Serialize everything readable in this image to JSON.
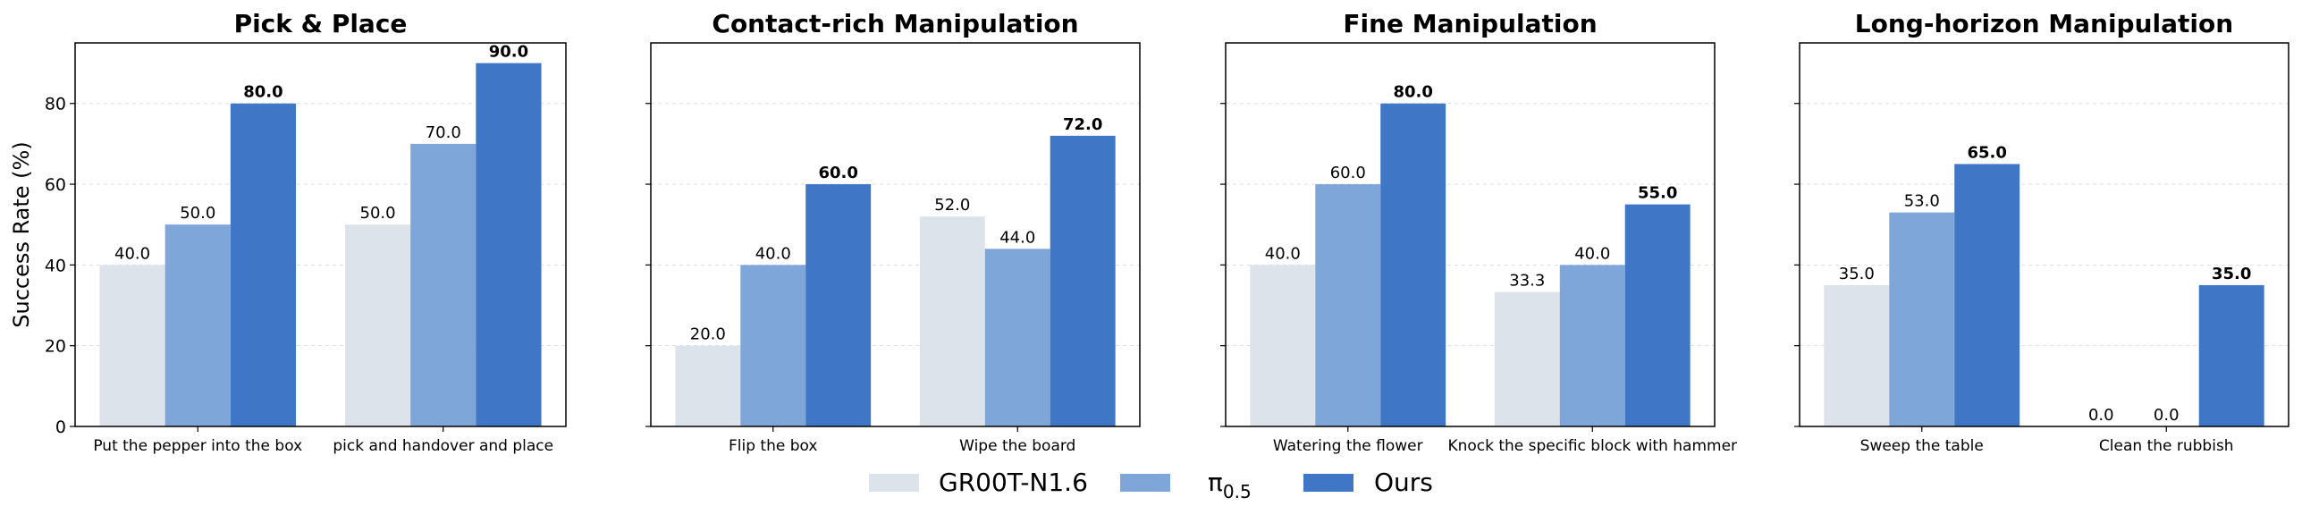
{
  "legend": {
    "entries": [
      {
        "label": "GR00T-N1.6",
        "color": "#dde3ea"
      },
      {
        "label": "π",
        "sub": "0.5",
        "color": "#7ea6d9"
      },
      {
        "label": "Ours",
        "color": "#3f76c5"
      }
    ]
  },
  "chart_data": [
    {
      "type": "bar",
      "title": "Pick & Place",
      "ylabel": "Success Rate (%)",
      "ylim": [
        0,
        95
      ],
      "yticks": [
        "0",
        "20",
        "40",
        "60",
        "80"
      ],
      "categories": [
        "Put the pepper into the box",
        "pick and handover and place"
      ],
      "series": [
        {
          "name": "GR00T-N1.6",
          "values": [
            40.0,
            50.0
          ],
          "labels": [
            "40.0",
            "50.0"
          ]
        },
        {
          "name": "π0.5",
          "values": [
            50.0,
            70.0
          ],
          "labels": [
            "50.0",
            "70.0"
          ]
        },
        {
          "name": "Ours",
          "values": [
            80.0,
            90.0
          ],
          "labels": [
            "80.0",
            "90.0"
          ]
        }
      ]
    },
    {
      "type": "bar",
      "title": "Contact-rich Manipulation",
      "ylabel": "",
      "ylim": [
        0,
        95
      ],
      "yticks": [],
      "categories": [
        "Flip the box",
        "Wipe the board"
      ],
      "series": [
        {
          "name": "GR00T-N1.6",
          "values": [
            20.0,
            52.0
          ],
          "labels": [
            "20.0",
            "52.0"
          ]
        },
        {
          "name": "π0.5",
          "values": [
            40.0,
            44.0
          ],
          "labels": [
            "40.0",
            "44.0"
          ]
        },
        {
          "name": "Ours",
          "values": [
            60.0,
            72.0
          ],
          "labels": [
            "60.0",
            "72.0"
          ]
        }
      ]
    },
    {
      "type": "bar",
      "title": "Fine Manipulation",
      "ylabel": "",
      "ylim": [
        0,
        95
      ],
      "yticks": [],
      "categories": [
        "Watering the flower",
        "Knock the specific block with hammer"
      ],
      "series": [
        {
          "name": "GR00T-N1.6",
          "values": [
            40.0,
            33.3
          ],
          "labels": [
            "40.0",
            "33.3"
          ]
        },
        {
          "name": "π0.5",
          "values": [
            60.0,
            40.0
          ],
          "labels": [
            "60.0",
            "40.0"
          ]
        },
        {
          "name": "Ours",
          "values": [
            80.0,
            55.0
          ],
          "labels": [
            "80.0",
            "55.0"
          ]
        }
      ]
    },
    {
      "type": "bar",
      "title": "Long-horizon Manipulation",
      "ylabel": "",
      "ylim": [
        0,
        95
      ],
      "yticks": [],
      "categories": [
        "Sweep the table",
        "Clean the rubbish"
      ],
      "series": [
        {
          "name": "GR00T-N1.6",
          "values": [
            35.0,
            0.0
          ],
          "labels": [
            "35.0",
            "0.0"
          ]
        },
        {
          "name": "π0.5",
          "values": [
            53.0,
            0.0
          ],
          "labels": [
            "53.0",
            "0.0"
          ]
        },
        {
          "name": "Ours",
          "values": [
            65.0,
            35.0
          ],
          "labels": [
            "65.0",
            "35.0"
          ]
        }
      ]
    }
  ]
}
